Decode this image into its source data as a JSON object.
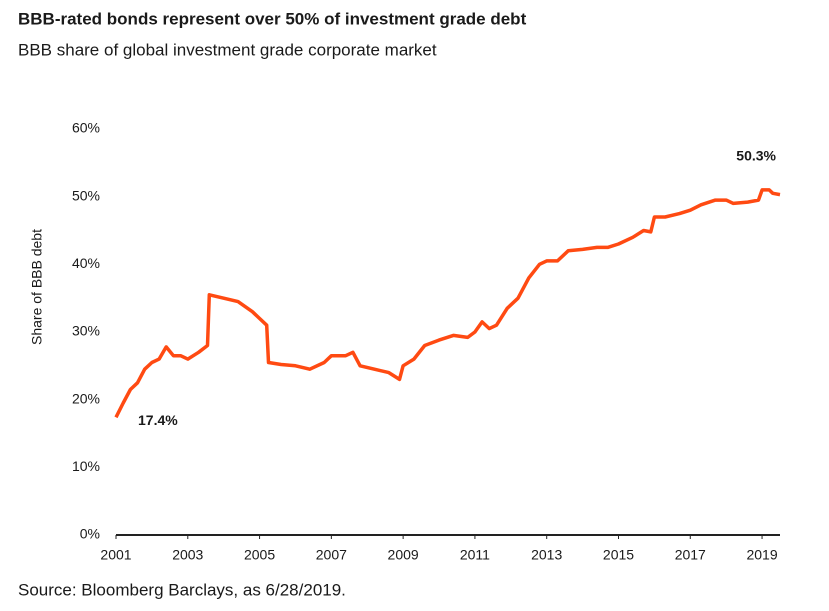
{
  "chart_data": {
    "type": "line",
    "title": "BBB-rated bonds represent over 50% of investment grade debt",
    "subtitle": "BBB share of global investment grade corporate market",
    "y_label": "Share of BBB debt",
    "source": "Source: Bloomberg Barclays, as 6/28/2019.",
    "xlim": [
      2001,
      2019.5
    ],
    "xticks": [
      2001,
      2003,
      2005,
      2007,
      2009,
      2011,
      2013,
      2015,
      2017,
      2019
    ],
    "ylim": [
      0,
      60
    ],
    "yticks": [
      {
        "value": 0,
        "label": "0%"
      },
      {
        "value": 10,
        "label": "10%"
      },
      {
        "value": 20,
        "label": "20%"
      },
      {
        "value": 30,
        "label": "30%"
      },
      {
        "value": 40,
        "label": "40%"
      },
      {
        "value": 50,
        "label": "50%"
      },
      {
        "value": 60,
        "label": "60%"
      }
    ],
    "grid": false,
    "series": [
      {
        "name": "BBB share",
        "color": "#ff4a12",
        "x": [
          2001.0,
          2001.2,
          2001.4,
          2001.6,
          2001.8,
          2002.0,
          2002.2,
          2002.4,
          2002.6,
          2002.8,
          2003.0,
          2003.3,
          2003.55,
          2003.6,
          2004.0,
          2004.4,
          2004.8,
          2005.0,
          2005.2,
          2005.25,
          2005.6,
          2006.0,
          2006.4,
          2006.8,
          2007.0,
          2007.4,
          2007.6,
          2007.8,
          2008.2,
          2008.6,
          2008.9,
          2009.0,
          2009.3,
          2009.6,
          2010.0,
          2010.4,
          2010.8,
          2011.0,
          2011.2,
          2011.4,
          2011.6,
          2011.9,
          2012.2,
          2012.5,
          2012.8,
          2013.0,
          2013.3,
          2013.6,
          2014.0,
          2014.4,
          2014.7,
          2015.0,
          2015.4,
          2015.7,
          2015.9,
          2016.0,
          2016.3,
          2016.7,
          2017.0,
          2017.3,
          2017.7,
          2018.0,
          2018.2,
          2018.6,
          2018.9,
          2019.0,
          2019.2,
          2019.3,
          2019.5
        ],
        "values": [
          17.4,
          19.5,
          21.5,
          22.5,
          24.5,
          25.5,
          26,
          27.8,
          26.5,
          26.5,
          26,
          27,
          28,
          35.5,
          35,
          34.5,
          33,
          32,
          31,
          25.5,
          25.2,
          25,
          24.5,
          25.5,
          26.5,
          26.5,
          27,
          25,
          24.5,
          24,
          23,
          25,
          26,
          28,
          28.8,
          29.5,
          29.2,
          30,
          31.5,
          30.5,
          31,
          33.5,
          35,
          38,
          40,
          40.5,
          40.5,
          42,
          42.2,
          42.5,
          42.5,
          43,
          44,
          45,
          44.8,
          47,
          47,
          47.5,
          48,
          48.8,
          49.5,
          49.5,
          49,
          49.2,
          49.5,
          51,
          51,
          50.5,
          50.3
        ]
      }
    ],
    "annotations": [
      {
        "label": "17.4%",
        "value": 17.4
      },
      {
        "label": "50.3%",
        "value": 50.3
      }
    ]
  }
}
